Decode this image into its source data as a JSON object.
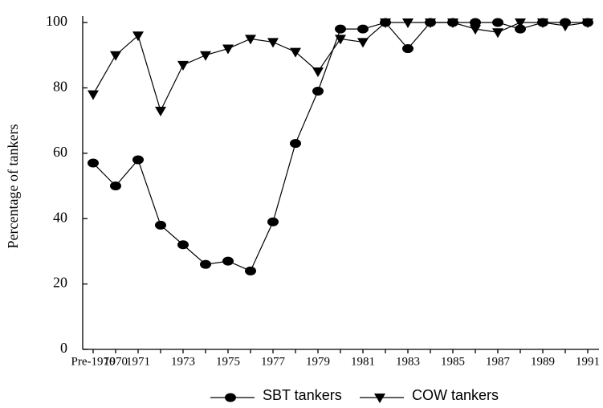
{
  "chart_data": {
    "type": "line",
    "ylabel": "Percentage of tankers",
    "categories": [
      "Pre-1970",
      "1970",
      "1971",
      null,
      "1973",
      null,
      "1975",
      null,
      "1977",
      null,
      "1979",
      null,
      "1981",
      null,
      "1983",
      null,
      "1985",
      null,
      "1987",
      null,
      "1989",
      null,
      "1991"
    ],
    "series": [
      {
        "name": "SBT tankers",
        "color": "#000000",
        "marker": "circle",
        "values": [
          57,
          50,
          58,
          38,
          32,
          26,
          27,
          24,
          39,
          63,
          79,
          98,
          98,
          100,
          92,
          100,
          100,
          100,
          100,
          98,
          100,
          100,
          100
        ]
      },
      {
        "name": "COW tankers",
        "color": "#000000",
        "marker": "triangle-down",
        "values": [
          78,
          90,
          96,
          73,
          87,
          90,
          92,
          95,
          94,
          91,
          85,
          95,
          94,
          100,
          100,
          100,
          100,
          98,
          97,
          100,
          100,
          99,
          100
        ]
      }
    ],
    "ylim": [
      0,
      100
    ],
    "yticks": [
      0,
      20,
      40,
      60,
      80,
      100
    ],
    "grid": false,
    "legend": "bottom"
  }
}
